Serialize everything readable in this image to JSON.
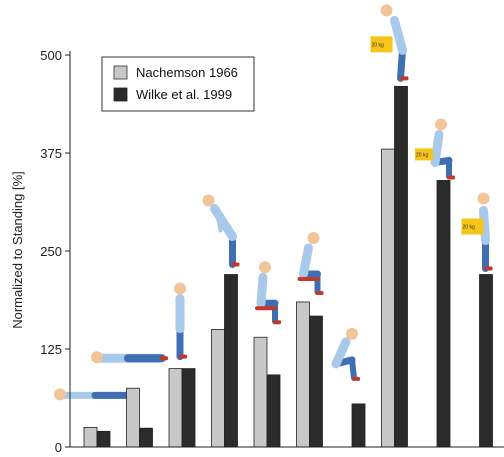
{
  "chart_data": {
    "type": "bar",
    "ylabel": "Normalized to Standing [%]",
    "yticks": [
      0,
      125,
      250,
      375,
      500
    ],
    "ylim": [
      0,
      500
    ],
    "legend_position": "top-left",
    "series": [
      {
        "name": "Nachemson 1966",
        "color": "#c8c8c8",
        "values": [
          25,
          75,
          100,
          150,
          140,
          185,
          null,
          380,
          null,
          null
        ]
      },
      {
        "name": "Wilke et al. 1999",
        "color": "#2b2b2b",
        "values": [
          20,
          24,
          100,
          220,
          92,
          167,
          55,
          460,
          340,
          220
        ]
      }
    ],
    "box_label": "20 kg"
  },
  "colors": {
    "skin": "#f2c49a",
    "shirt": "#a9c9ea",
    "pants": "#3f6fb3",
    "shoes": "#c0392b",
    "box": "#f5c518"
  }
}
